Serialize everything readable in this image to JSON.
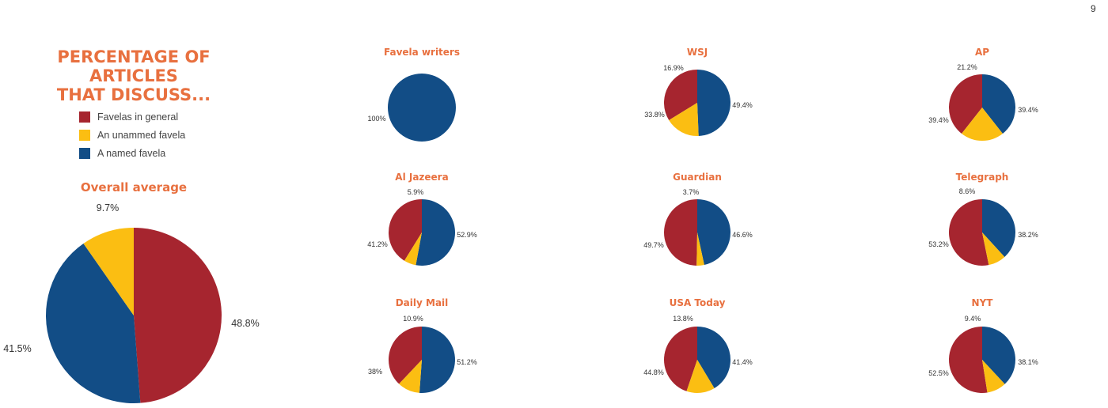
{
  "page_number": "9",
  "title_lines": [
    "PERCENTAGE OF ARTICLES",
    "THAT DISCUSS..."
  ],
  "colors": {
    "general": "#a6252f",
    "unnamed": "#fbbe12",
    "named": "#124d86",
    "title": "#e8703f"
  },
  "legend": [
    {
      "key": "general",
      "label": "Favelas in general"
    },
    {
      "key": "unnamed",
      "label": "An unammed favela"
    },
    {
      "key": "named",
      "label": "A named favela"
    }
  ],
  "chart_data": [
    {
      "type": "pie",
      "title": "Overall average",
      "slices": [
        {
          "key": "general",
          "value": 48.8,
          "label": "48.8%"
        },
        {
          "key": "named",
          "value": 41.5,
          "label": "41.5%"
        },
        {
          "key": "unnamed",
          "value": 9.7,
          "label": "9.7%"
        }
      ]
    },
    {
      "type": "pie",
      "title": "Favela writers",
      "slices": [
        {
          "key": "named",
          "value": 100,
          "label": "100%"
        }
      ]
    },
    {
      "type": "pie",
      "title": "WSJ",
      "slices": [
        {
          "key": "named",
          "value": 49.4,
          "label": "49.4%"
        },
        {
          "key": "general",
          "value": 33.8,
          "label": "33.8%"
        },
        {
          "key": "unnamed",
          "value": 16.9,
          "label": "16.9%"
        }
      ]
    },
    {
      "type": "pie",
      "title": "AP",
      "slices": [
        {
          "key": "named",
          "value": 39.4,
          "label": "39.4%"
        },
        {
          "key": "general",
          "value": 39.4,
          "label": "39.4%"
        },
        {
          "key": "unnamed",
          "value": 21.2,
          "label": "21.2%"
        }
      ]
    },
    {
      "type": "pie",
      "title": "Al Jazeera",
      "slices": [
        {
          "key": "named",
          "value": 52.9,
          "label": "52.9%"
        },
        {
          "key": "general",
          "value": 41.2,
          "label": "41.2%"
        },
        {
          "key": "unnamed",
          "value": 5.9,
          "label": "5.9%"
        }
      ]
    },
    {
      "type": "pie",
      "title": "Guardian",
      "slices": [
        {
          "key": "named",
          "value": 46.6,
          "label": "46.6%"
        },
        {
          "key": "general",
          "value": 49.7,
          "label": "49.7%"
        },
        {
          "key": "unnamed",
          "value": 3.7,
          "label": "3.7%"
        }
      ]
    },
    {
      "type": "pie",
      "title": "Telegraph",
      "slices": [
        {
          "key": "named",
          "value": 38.2,
          "label": "38.2%"
        },
        {
          "key": "general",
          "value": 53.2,
          "label": "53.2%"
        },
        {
          "key": "unnamed",
          "value": 8.6,
          "label": "8.6%"
        }
      ]
    },
    {
      "type": "pie",
      "title": "Daily Mail",
      "slices": [
        {
          "key": "named",
          "value": 51.2,
          "label": "51.2%"
        },
        {
          "key": "general",
          "value": 38,
          "label": "38%"
        },
        {
          "key": "unnamed",
          "value": 10.9,
          "label": "10.9%"
        }
      ]
    },
    {
      "type": "pie",
      "title": "USA Today",
      "slices": [
        {
          "key": "named",
          "value": 41.4,
          "label": "41.4%"
        },
        {
          "key": "general",
          "value": 44.8,
          "label": "44.8%"
        },
        {
          "key": "unnamed",
          "value": 13.8,
          "label": "13.8%"
        }
      ]
    },
    {
      "type": "pie",
      "title": "NYT",
      "slices": [
        {
          "key": "named",
          "value": 38.1,
          "label": "38.1%"
        },
        {
          "key": "general",
          "value": 52.5,
          "label": "52.5%"
        },
        {
          "key": "unnamed",
          "value": 9.4,
          "label": "9.4%"
        }
      ]
    }
  ]
}
